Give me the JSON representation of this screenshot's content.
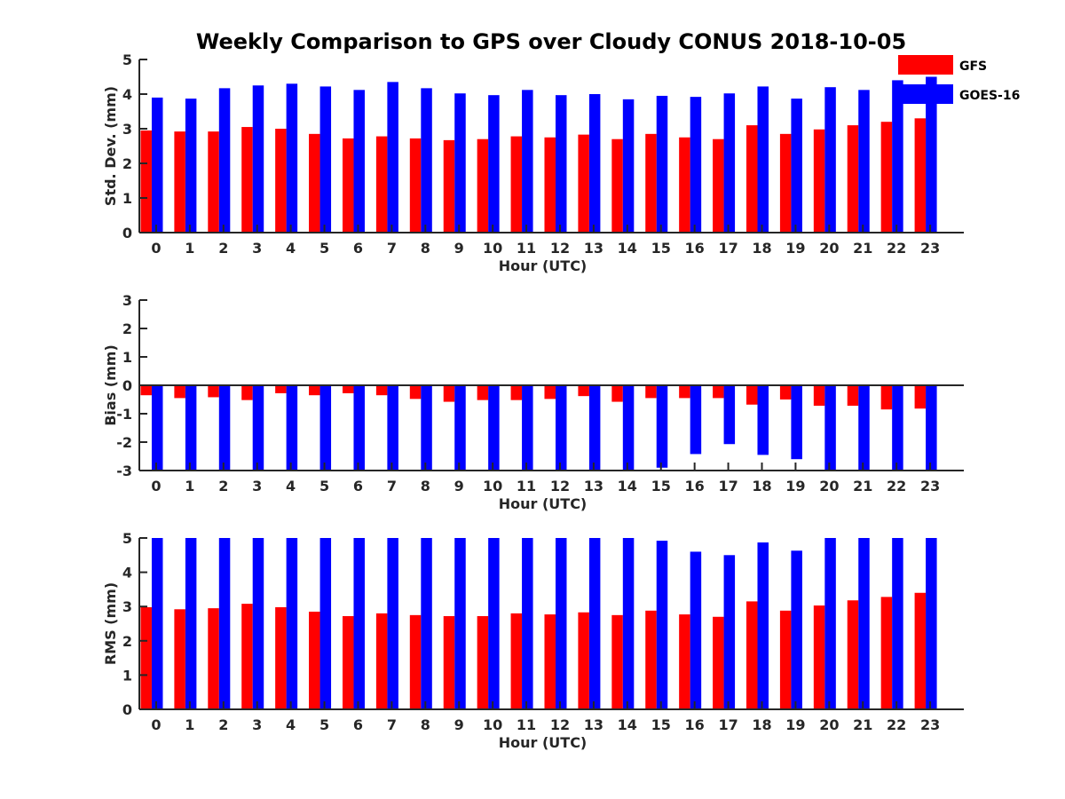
{
  "title": "Weekly Comparison to GPS over Cloudy CONUS 2018-10-05",
  "legend": [
    {
      "name": "GFS",
      "color": "#ff0000"
    },
    {
      "name": "GOES-16",
      "color": "#0000ff"
    }
  ],
  "chart_data": [
    {
      "type": "bar",
      "categories": [
        "0",
        "1",
        "2",
        "3",
        "4",
        "5",
        "6",
        "7",
        "8",
        "9",
        "10",
        "11",
        "12",
        "13",
        "14",
        "15",
        "16",
        "17",
        "18",
        "19",
        "20",
        "21",
        "22",
        "23"
      ],
      "xlabel": "Hour (UTC)",
      "ylabel": "Std. Dev. (mm)",
      "ylim": [
        0,
        5
      ],
      "yticks": [
        "0",
        "1",
        "2",
        "3",
        "4",
        "5"
      ],
      "series": [
        {
          "name": "GFS",
          "color": "#ff0000",
          "values": [
            2.95,
            2.92,
            2.92,
            3.05,
            3.0,
            2.85,
            2.72,
            2.78,
            2.72,
            2.67,
            2.7,
            2.78,
            2.75,
            2.83,
            2.7,
            2.85,
            2.75,
            2.7,
            3.1,
            2.85,
            2.98,
            3.1,
            3.2,
            3.3
          ]
        },
        {
          "name": "GOES-16",
          "color": "#0000ff",
          "values": [
            3.9,
            3.87,
            4.17,
            4.25,
            4.3,
            4.22,
            4.12,
            4.35,
            4.17,
            4.02,
            3.97,
            4.12,
            3.97,
            4.0,
            3.85,
            3.95,
            3.92,
            4.02,
            4.22,
            3.87,
            4.2,
            4.12,
            4.4,
            4.5
          ]
        }
      ],
      "legend": "top-right",
      "grid": false
    },
    {
      "type": "bar",
      "categories": [
        "0",
        "1",
        "2",
        "3",
        "4",
        "5",
        "6",
        "7",
        "8",
        "9",
        "10",
        "11",
        "12",
        "13",
        "14",
        "15",
        "16",
        "17",
        "18",
        "19",
        "20",
        "21",
        "22",
        "23"
      ],
      "xlabel": "Hour (UTC)",
      "ylabel": "Bias (mm)",
      "ylim": [
        -3,
        3
      ],
      "yticks": [
        "-3",
        "-2",
        "-1",
        "0",
        "1",
        "2",
        "3"
      ],
      "series": [
        {
          "name": "GFS",
          "color": "#ff0000",
          "values": [
            -0.35,
            -0.45,
            -0.42,
            -0.52,
            -0.28,
            -0.35,
            -0.28,
            -0.35,
            -0.48,
            -0.58,
            -0.52,
            -0.52,
            -0.48,
            -0.38,
            -0.58,
            -0.45,
            -0.45,
            -0.45,
            -0.68,
            -0.5,
            -0.72,
            -0.72,
            -0.85,
            -0.82
          ]
        },
        {
          "name": "GOES-16",
          "color": "#0000ff",
          "values": [
            -3.0,
            -3.0,
            -3.0,
            -3.0,
            -3.0,
            -3.0,
            -3.0,
            -3.0,
            -3.0,
            -3.0,
            -3.0,
            -3.0,
            -3.0,
            -3.0,
            -3.0,
            -2.9,
            -2.42,
            -2.07,
            -2.45,
            -2.6,
            -3.0,
            -3.0,
            -3.0,
            -3.0
          ]
        }
      ],
      "grid": false
    },
    {
      "type": "bar",
      "categories": [
        "0",
        "1",
        "2",
        "3",
        "4",
        "5",
        "6",
        "7",
        "8",
        "9",
        "10",
        "11",
        "12",
        "13",
        "14",
        "15",
        "16",
        "17",
        "18",
        "19",
        "20",
        "21",
        "22",
        "23"
      ],
      "xlabel": "Hour (UTC)",
      "ylabel": "RMS (mm)",
      "ylim": [
        0,
        5
      ],
      "yticks": [
        "0",
        "1",
        "2",
        "3",
        "4",
        "5"
      ],
      "series": [
        {
          "name": "GFS",
          "color": "#ff0000",
          "values": [
            2.98,
            2.92,
            2.95,
            3.08,
            2.98,
            2.85,
            2.72,
            2.8,
            2.75,
            2.72,
            2.72,
            2.8,
            2.77,
            2.83,
            2.75,
            2.88,
            2.77,
            2.7,
            3.15,
            2.88,
            3.03,
            3.18,
            3.28,
            3.4
          ]
        },
        {
          "name": "GOES-16",
          "color": "#0000ff",
          "values": [
            5.0,
            5.0,
            5.0,
            5.0,
            5.0,
            5.0,
            5.0,
            5.0,
            5.0,
            5.0,
            5.0,
            5.0,
            5.0,
            5.0,
            5.0,
            4.92,
            4.6,
            4.5,
            4.87,
            4.63,
            5.0,
            5.0,
            5.0,
            5.0
          ]
        }
      ],
      "grid": false
    }
  ]
}
